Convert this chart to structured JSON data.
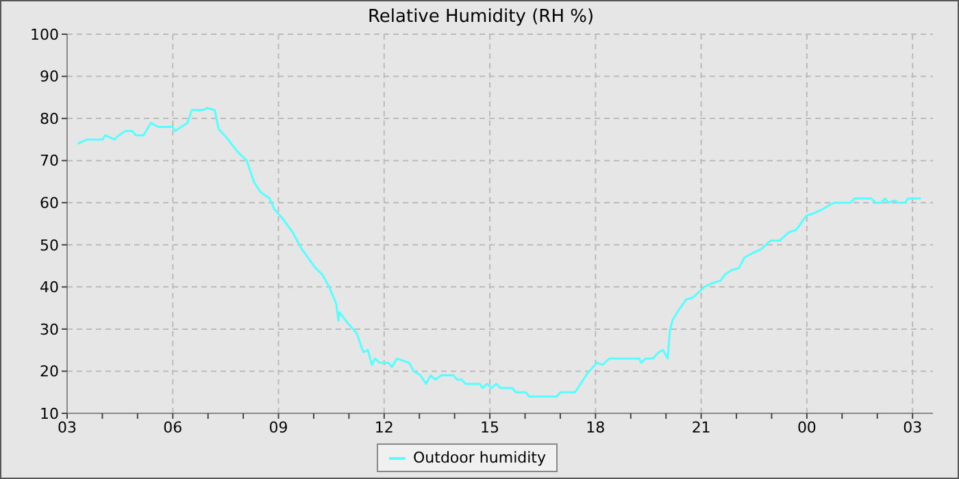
{
  "chart_data": {
    "type": "line",
    "title": "Relative Humidity (RH %)",
    "xlim": [
      3,
      27.58
    ],
    "xticks": [
      {
        "value": 3,
        "label": "03"
      },
      {
        "value": 4,
        "label": null
      },
      {
        "value": 5,
        "label": null
      },
      {
        "value": 6,
        "label": "06"
      },
      {
        "value": 7,
        "label": null
      },
      {
        "value": 8,
        "label": null
      },
      {
        "value": 9,
        "label": "09"
      },
      {
        "value": 10,
        "label": null
      },
      {
        "value": 11,
        "label": null
      },
      {
        "value": 12,
        "label": "12"
      },
      {
        "value": 13,
        "label": null
      },
      {
        "value": 14,
        "label": null
      },
      {
        "value": 15,
        "label": "15"
      },
      {
        "value": 16,
        "label": null
      },
      {
        "value": 17,
        "label": null
      },
      {
        "value": 18,
        "label": "18"
      },
      {
        "value": 19,
        "label": null
      },
      {
        "value": 20,
        "label": null
      },
      {
        "value": 21,
        "label": "21"
      },
      {
        "value": 22,
        "label": null
      },
      {
        "value": 23,
        "label": null
      },
      {
        "value": 24,
        "label": "00"
      },
      {
        "value": 25,
        "label": null
      },
      {
        "value": 26,
        "label": null
      },
      {
        "value": 27,
        "label": "03"
      }
    ],
    "ylim": [
      10,
      100
    ],
    "yticks": [
      10,
      20,
      30,
      40,
      50,
      60,
      70,
      80,
      90,
      100
    ],
    "grid": true,
    "legend": "bottom",
    "marker": "none",
    "line_style": "solid",
    "series": [
      {
        "name": "Outdoor humidity",
        "color": "#55ffff",
        "x": [
          3.3,
          3.56,
          4.01,
          4.08,
          4.34,
          4.47,
          4.66,
          4.85,
          4.95,
          5.17,
          5.38,
          5.58,
          6.0,
          6.06,
          6.42,
          6.54,
          6.87,
          6.97,
          7.19,
          7.3,
          7.52,
          7.85,
          8.1,
          8.3,
          8.49,
          8.75,
          8.88,
          9.14,
          9.4,
          9.66,
          10.05,
          10.24,
          10.44,
          10.64,
          10.7,
          10.73,
          10.96,
          11.22,
          11.41,
          11.54,
          11.65,
          11.74,
          11.87,
          12.13,
          12.22,
          12.36,
          12.71,
          12.84,
          13.03,
          13.19,
          13.32,
          13.45,
          13.62,
          13.97,
          14.07,
          14.2,
          14.31,
          14.72,
          14.79,
          14.92,
          15.05,
          15.18,
          15.31,
          15.64,
          15.74,
          16.02,
          16.11,
          16.9,
          17.0,
          17.42,
          17.58,
          17.77,
          18.04,
          18.2,
          18.39,
          19.24,
          19.3,
          19.42,
          19.63,
          19.79,
          19.92,
          20.05,
          20.11,
          20.18,
          20.32,
          20.57,
          20.77,
          21.09,
          21.35,
          21.55,
          21.68,
          21.87,
          22.07,
          22.23,
          22.45,
          22.71,
          22.97,
          23.23,
          23.49,
          23.69,
          24.0,
          24.2,
          24.46,
          24.65,
          24.79,
          25.24,
          25.35,
          25.83,
          25.96,
          26.1,
          26.22,
          26.31,
          26.48,
          26.61,
          26.8,
          26.87,
          27.24
        ],
        "values": [
          74,
          75,
          75,
          76,
          75,
          76,
          77,
          77,
          76,
          76,
          79,
          78,
          78,
          77,
          79,
          82,
          82,
          82.5,
          82,
          77.5,
          75.5,
          72,
          70,
          65,
          62.5,
          61,
          58.5,
          56,
          53,
          49,
          44.5,
          43,
          40,
          36,
          32,
          34,
          31.5,
          29,
          24.5,
          25,
          21.5,
          23,
          22,
          22,
          21,
          23,
          22,
          20,
          19,
          17,
          19,
          18,
          19,
          19,
          18,
          18,
          17,
          17,
          16,
          17,
          16,
          17,
          16,
          16,
          15,
          15,
          14,
          14,
          15,
          15,
          17,
          19.5,
          22,
          21.5,
          23,
          23,
          22,
          23,
          23,
          24.5,
          25,
          23,
          29.5,
          32,
          34,
          37,
          37.5,
          40,
          41,
          41.5,
          43,
          44,
          44.5,
          47,
          48,
          49,
          51,
          51,
          53,
          53.5,
          57,
          57.5,
          58.5,
          59.5,
          60,
          60,
          61,
          61,
          60,
          60,
          61,
          60,
          60.5,
          60,
          60,
          61,
          61
        ]
      }
    ]
  }
}
